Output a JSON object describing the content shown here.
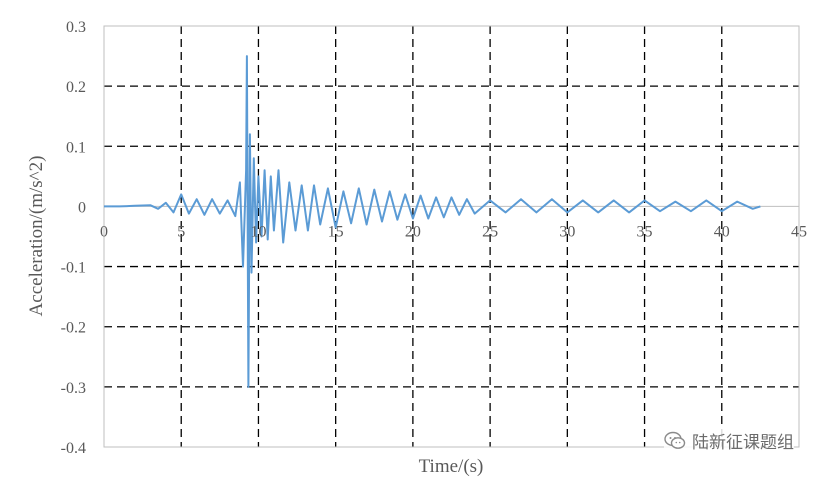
{
  "chart_data": {
    "type": "line",
    "xlabel": "Time/(s)",
    "ylabel": "Acceleration/(m/s^2)",
    "xlim": [
      0,
      45
    ],
    "ylim": [
      -0.4,
      0.3
    ],
    "xticks": [
      "0",
      "5",
      "10",
      "15",
      "20",
      "25",
      "30",
      "35",
      "40",
      "45"
    ],
    "yticks": [
      "0.3",
      "0.2",
      "0.1",
      "0",
      "-0.1",
      "-0.2",
      "-0.3",
      "-0.4"
    ],
    "grid": "dashed",
    "legend": "none",
    "line_color": "#5b9bd5",
    "series": [
      {
        "values_description": "acceleration time history",
        "x": [
          0,
          1,
          2,
          3,
          3.5,
          4,
          4.5,
          5,
          5.5,
          6,
          6.5,
          7,
          7.5,
          8,
          8.5,
          8.8,
          9.0,
          9.2,
          9.25,
          9.35,
          9.45,
          9.55,
          9.7,
          9.85,
          10.0,
          10.2,
          10.4,
          10.6,
          10.8,
          11.0,
          11.3,
          11.6,
          12.0,
          12.4,
          12.8,
          13.2,
          13.6,
          14.0,
          14.5,
          15.0,
          15.5,
          16.0,
          16.5,
          17.0,
          17.5,
          18.0,
          18.5,
          19.0,
          19.5,
          20.0,
          20.5,
          21.0,
          21.5,
          22.0,
          22.5,
          23.0,
          23.5,
          24.0,
          25.0,
          26.0,
          27.0,
          28.0,
          29.0,
          30.0,
          31.0,
          32.0,
          33.0,
          34.0,
          35.0,
          36.0,
          37.0,
          38.0,
          39.0,
          40.0,
          41.0,
          42.0,
          42.5
        ],
        "y": [
          0,
          0,
          0.001,
          0.002,
          -0.004,
          0.006,
          -0.01,
          0.02,
          -0.012,
          0.012,
          -0.014,
          0.012,
          -0.012,
          0.01,
          -0.016,
          0.04,
          -0.1,
          0.06,
          0.25,
          -0.3,
          0.12,
          -0.11,
          0.08,
          -0.06,
          0.05,
          -0.05,
          0.06,
          -0.055,
          0.05,
          -0.04,
          0.06,
          -0.06,
          0.04,
          -0.04,
          0.035,
          -0.04,
          0.035,
          -0.03,
          0.03,
          -0.035,
          0.025,
          -0.028,
          0.03,
          -0.03,
          0.028,
          -0.025,
          0.025,
          -0.022,
          0.02,
          -0.02,
          0.018,
          -0.02,
          0.015,
          -0.018,
          0.015,
          -0.014,
          0.012,
          -0.012,
          0.01,
          -0.01,
          0.012,
          -0.01,
          0.012,
          -0.01,
          0.01,
          -0.01,
          0.01,
          -0.01,
          0.01,
          -0.008,
          0.008,
          -0.008,
          0.01,
          -0.008,
          0.008,
          -0.004,
          0
        ]
      }
    ]
  },
  "watermark": {
    "text": "陆新征课题组",
    "icon": "wechat-icon"
  }
}
